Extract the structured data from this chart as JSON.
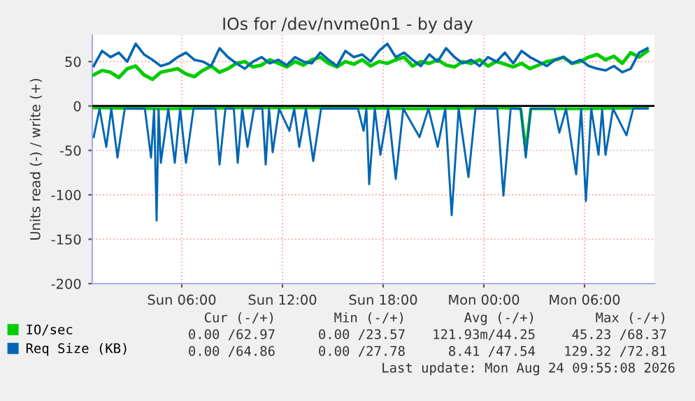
{
  "chart_data": {
    "type": "line",
    "title": "IOs for /dev/nvme0n1 - by day",
    "ylabel": "Units read (-) / write (+)",
    "xlim": [
      "2026-08-23T00:40",
      "2026-08-24T10:10"
    ],
    "ylim": [
      -200,
      80
    ],
    "xticks": [
      {
        "value": "2026-08-23T06:00",
        "label": "Sun 06:00"
      },
      {
        "value": "2026-08-23T12:00",
        "label": "Sun 12:00"
      },
      {
        "value": "2026-08-23T18:00",
        "label": "Sun 18:00"
      },
      {
        "value": "2026-08-24T00:00",
        "label": "Mon 00:00"
      },
      {
        "value": "2026-08-24T06:00",
        "label": "Mon 06:00"
      }
    ],
    "yticks": [
      -200,
      -150,
      -100,
      -50,
      0,
      50
    ],
    "grid": true,
    "legend": "bottom",
    "marker": "none",
    "line_style": "solid",
    "ref_lines": [
      {
        "axis": "y",
        "value": 0,
        "color": "#000000"
      }
    ],
    "annotations": [
      "Cur (-/+)",
      "Min (-/+)",
      "Avg (-/+)",
      "Max (-/+)",
      "0.00 /62.97",
      "0.00 /23.57",
      "121.93m/44.25",
      "45.23 /68.37",
      "0.00 /64.86",
      "0.00 /27.78",
      "8.41 /47.54",
      "129.32 /72.81",
      "Last update: Mon Aug 24 09:55:08 2026"
    ],
    "series": [
      {
        "name": "IO/sec",
        "color": "#00cc00",
        "x": [
          "2026-08-23T00:45",
          "2026-08-23T01:15",
          "2026-08-23T01:45",
          "2026-08-23T02:15",
          "2026-08-23T02:45",
          "2026-08-23T03:15",
          "2026-08-23T03:45",
          "2026-08-23T04:15",
          "2026-08-23T04:45",
          "2026-08-23T05:15",
          "2026-08-23T05:45",
          "2026-08-23T06:15",
          "2026-08-23T06:45",
          "2026-08-23T07:15",
          "2026-08-23T07:45",
          "2026-08-23T08:15",
          "2026-08-23T08:45",
          "2026-08-23T09:15",
          "2026-08-23T09:45",
          "2026-08-23T10:15",
          "2026-08-23T10:45",
          "2026-08-23T11:15",
          "2026-08-23T11:45",
          "2026-08-23T12:15",
          "2026-08-23T12:45",
          "2026-08-23T13:15",
          "2026-08-23T13:45",
          "2026-08-23T14:15",
          "2026-08-23T14:45",
          "2026-08-23T15:15",
          "2026-08-23T15:45",
          "2026-08-23T16:15",
          "2026-08-23T16:45",
          "2026-08-23T17:15",
          "2026-08-23T17:45",
          "2026-08-23T18:15",
          "2026-08-23T18:45",
          "2026-08-23T19:15",
          "2026-08-23T19:45",
          "2026-08-23T20:15",
          "2026-08-23T20:45",
          "2026-08-23T21:15",
          "2026-08-23T21:45",
          "2026-08-23T22:15",
          "2026-08-23T22:45",
          "2026-08-23T23:15",
          "2026-08-23T23:45",
          "2026-08-24T00:15",
          "2026-08-24T00:45",
          "2026-08-24T01:15",
          "2026-08-24T01:45",
          "2026-08-24T02:15",
          "2026-08-24T02:45",
          "2026-08-24T03:15",
          "2026-08-24T03:45",
          "2026-08-24T04:15",
          "2026-08-24T04:45",
          "2026-08-24T05:15",
          "2026-08-24T05:45",
          "2026-08-24T06:15",
          "2026-08-24T06:45",
          "2026-08-24T07:15",
          "2026-08-24T07:45",
          "2026-08-24T08:15",
          "2026-08-24T08:45",
          "2026-08-24T09:15",
          "2026-08-24T09:45"
        ],
        "values": [
          35,
          40,
          38,
          32,
          42,
          45,
          35,
          30,
          38,
          40,
          42,
          36,
          33,
          40,
          45,
          38,
          42,
          48,
          50,
          44,
          46,
          52,
          48,
          44,
          50,
          46,
          52,
          55,
          48,
          44,
          50,
          47,
          52,
          45,
          50,
          48,
          52,
          55,
          45,
          50,
          48,
          52,
          46,
          44,
          50,
          48,
          52,
          45,
          50,
          47,
          44,
          48,
          42,
          46,
          50,
          52,
          55,
          48,
          50,
          55,
          58,
          52,
          56,
          48,
          60,
          55,
          62
        ]
      },
      {
        "color": "#00cc00",
        "x": [
          "2026-08-23T00:45",
          "2026-08-23T05:00",
          "2026-08-23T10:00",
          "2026-08-23T15:00",
          "2026-08-23T20:00",
          "2026-08-24T01:00",
          "2026-08-24T02:12",
          "2026-08-24T02:30",
          "2026-08-24T02:48",
          "2026-08-24T06:00",
          "2026-08-24T09:45"
        ],
        "values": [
          -2,
          -3,
          -2,
          -2,
          -3,
          -2,
          -3,
          -50,
          -3,
          -3,
          -2
        ]
      },
      {
        "name": "Req Size (KB)",
        "color": "#0066b3",
        "x": [
          "2026-08-23T00:45",
          "2026-08-23T01:15",
          "2026-08-23T01:45",
          "2026-08-23T02:15",
          "2026-08-23T02:45",
          "2026-08-23T03:15",
          "2026-08-23T03:45",
          "2026-08-23T04:15",
          "2026-08-23T04:45",
          "2026-08-23T05:15",
          "2026-08-23T05:45",
          "2026-08-23T06:15",
          "2026-08-23T06:45",
          "2026-08-23T07:15",
          "2026-08-23T07:45",
          "2026-08-23T08:15",
          "2026-08-23T08:45",
          "2026-08-23T09:15",
          "2026-08-23T09:45",
          "2026-08-23T10:15",
          "2026-08-23T10:45",
          "2026-08-23T11:15",
          "2026-08-23T11:45",
          "2026-08-23T12:15",
          "2026-08-23T12:45",
          "2026-08-23T13:15",
          "2026-08-23T13:45",
          "2026-08-23T14:15",
          "2026-08-23T14:45",
          "2026-08-23T15:15",
          "2026-08-23T15:45",
          "2026-08-23T16:15",
          "2026-08-23T16:45",
          "2026-08-23T17:15",
          "2026-08-23T17:45",
          "2026-08-23T18:15",
          "2026-08-23T18:45",
          "2026-08-23T19:15",
          "2026-08-23T19:45",
          "2026-08-23T20:15",
          "2026-08-23T20:45",
          "2026-08-23T21:15",
          "2026-08-23T21:45",
          "2026-08-23T22:15",
          "2026-08-23T22:45",
          "2026-08-23T23:15",
          "2026-08-23T23:45",
          "2026-08-24T00:15",
          "2026-08-24T00:45",
          "2026-08-24T01:15",
          "2026-08-24T01:45",
          "2026-08-24T02:15",
          "2026-08-24T02:45",
          "2026-08-24T03:15",
          "2026-08-24T03:45",
          "2026-08-24T04:15",
          "2026-08-24T04:45",
          "2026-08-24T05:15",
          "2026-08-24T05:45",
          "2026-08-24T06:15",
          "2026-08-24T06:45",
          "2026-08-24T07:15",
          "2026-08-24T07:45",
          "2026-08-24T08:15",
          "2026-08-24T08:45",
          "2026-08-24T09:15",
          "2026-08-24T09:45"
        ],
        "values": [
          45,
          62,
          55,
          60,
          50,
          70,
          58,
          52,
          45,
          48,
          55,
          60,
          52,
          50,
          45,
          65,
          55,
          48,
          42,
          50,
          55,
          48,
          52,
          46,
          55,
          50,
          48,
          60,
          52,
          45,
          62,
          55,
          58,
          50,
          62,
          70,
          55,
          60,
          52,
          45,
          58,
          50,
          65,
          55,
          48,
          52,
          45,
          55,
          50,
          60,
          48,
          62,
          55,
          50,
          45,
          52,
          55,
          48,
          52,
          45,
          42,
          40,
          45,
          38,
          42,
          60,
          65
        ]
      },
      {
        "color": "#0066b3",
        "x": [
          "2026-08-23T00:45",
          "2026-08-23T01:06",
          "2026-08-23T01:30",
          "2026-08-23T01:48",
          "2026-08-23T02:10",
          "2026-08-23T02:36",
          "2026-08-23T03:48",
          "2026-08-23T04:10",
          "2026-08-23T04:21",
          "2026-08-23T04:30",
          "2026-08-23T04:37",
          "2026-08-23T04:45",
          "2026-08-23T05:12",
          "2026-08-23T05:35",
          "2026-08-23T05:54",
          "2026-08-23T06:15",
          "2026-08-23T06:42",
          "2026-08-23T08:00",
          "2026-08-23T08:15",
          "2026-08-23T08:36",
          "2026-08-23T09:06",
          "2026-08-23T09:20",
          "2026-08-23T09:36",
          "2026-08-23T09:55",
          "2026-08-23T10:18",
          "2026-08-23T10:48",
          "2026-08-23T11:00",
          "2026-08-23T11:12",
          "2026-08-23T11:25",
          "2026-08-23T11:48",
          "2026-08-23T12:25",
          "2026-08-23T12:42",
          "2026-08-23T13:00",
          "2026-08-23T13:24",
          "2026-08-23T13:50",
          "2026-08-23T14:18",
          "2026-08-23T16:30",
          "2026-08-23T16:50",
          "2026-08-23T17:00",
          "2026-08-23T17:10",
          "2026-08-23T17:30",
          "2026-08-23T17:50",
          "2026-08-23T18:18",
          "2026-08-23T18:45",
          "2026-08-23T19:12",
          "2026-08-23T20:10",
          "2026-08-23T20:42",
          "2026-08-23T21:15",
          "2026-08-23T21:42",
          "2026-08-23T22:05",
          "2026-08-23T22:30",
          "2026-08-23T23:05",
          "2026-08-23T23:30",
          "2026-08-24T00:48",
          "2026-08-24T01:10",
          "2026-08-24T01:36",
          "2026-08-24T02:12",
          "2026-08-24T02:30",
          "2026-08-24T02:48",
          "2026-08-24T04:12",
          "2026-08-24T04:30",
          "2026-08-24T04:54",
          "2026-08-24T05:30",
          "2026-08-24T05:48",
          "2026-08-24T06:05",
          "2026-08-24T06:24",
          "2026-08-24T06:50",
          "2026-08-24T07:03",
          "2026-08-24T07:15",
          "2026-08-24T07:42",
          "2026-08-24T08:30",
          "2026-08-24T08:54",
          "2026-08-24T09:45"
        ],
        "values": [
          -35,
          -3,
          -46,
          -3,
          -58,
          -3,
          -3,
          -58,
          -4,
          -129,
          -4,
          -64,
          -3,
          -64,
          -3,
          -64,
          -3,
          -3,
          -66,
          -3,
          -3,
          -64,
          -3,
          -46,
          -3,
          -3,
          -66,
          -3,
          -52,
          -3,
          -28,
          -3,
          -46,
          -3,
          -62,
          -3,
          -3,
          -28,
          -3,
          -88,
          -3,
          -55,
          -3,
          -82,
          -3,
          -35,
          -3,
          -46,
          -3,
          -123,
          -3,
          -80,
          -3,
          -3,
          -101,
          -3,
          -3,
          -58,
          -3,
          -3,
          -30,
          -3,
          -77,
          -3,
          -107,
          -3,
          -55,
          -4,
          -55,
          -3,
          -33,
          -3,
          -3
        ]
      }
    ]
  }
}
